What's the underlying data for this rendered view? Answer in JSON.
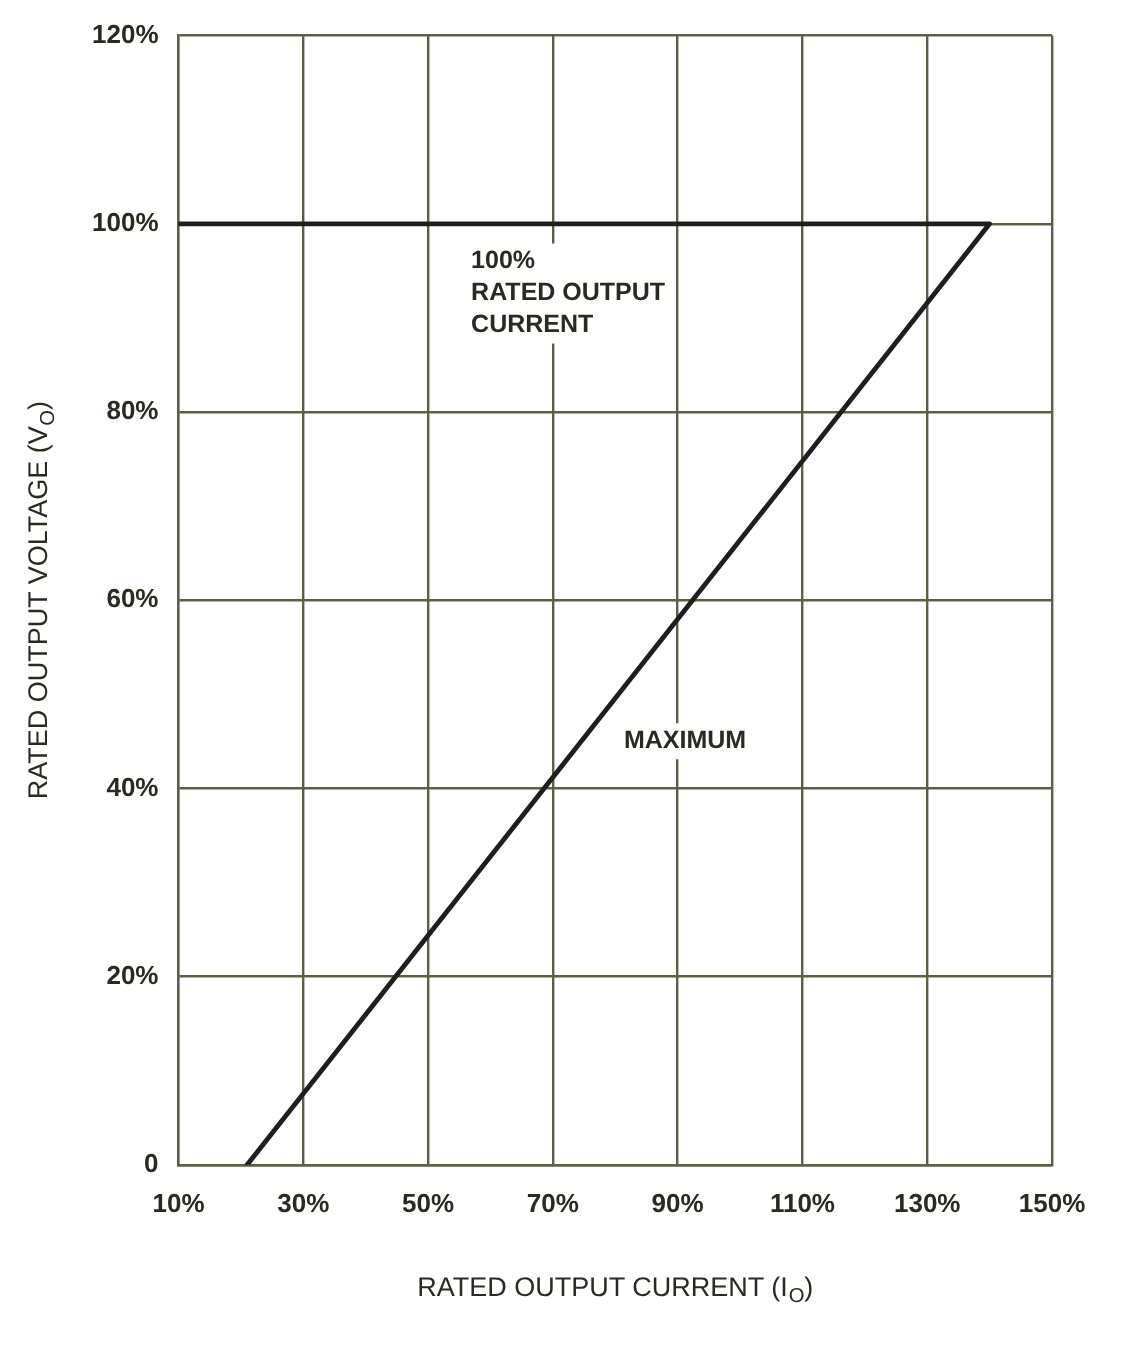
{
  "chart_data": {
    "type": "line",
    "xlabel": "RATED OUTPUT CURRENT (I$_{O}$)",
    "ylabel": "RATED OUTPUT VOLTAGE (V$_{O}$)",
    "xlim": [
      10,
      150
    ],
    "xticks": [
      {
        "value": 10,
        "label": "10%"
      },
      {
        "value": 30,
        "label": "30%"
      },
      {
        "value": 50,
        "label": "50%"
      },
      {
        "value": 70,
        "label": "70%"
      },
      {
        "value": 90,
        "label": "90%"
      },
      {
        "value": 110,
        "label": "110%"
      },
      {
        "value": 130,
        "label": "130%"
      },
      {
        "value": 150,
        "label": "150%"
      }
    ],
    "ylim": [
      0,
      120
    ],
    "yticks": [
      0,
      {
        "value": 20,
        "label": "20%"
      },
      {
        "value": 40,
        "label": "40%"
      },
      {
        "value": 60,
        "label": "60%"
      },
      {
        "value": 80,
        "label": "80%"
      },
      {
        "value": 100,
        "label": "100%"
      },
      {
        "value": 120,
        "label": "120%"
      }
    ],
    "series": [
      {
        "color": "#1e1e1e",
        "x": [
          10,
          140,
          21
        ],
        "values": [
          100,
          100,
          0
        ]
      }
    ],
    "annotations": [
      "100%\nRATED OUTPUT\nCURRENT",
      "MAXIMUM"
    ],
    "grid": true,
    "legend": false,
    "marker": "none",
    "line_style": "solid"
  }
}
